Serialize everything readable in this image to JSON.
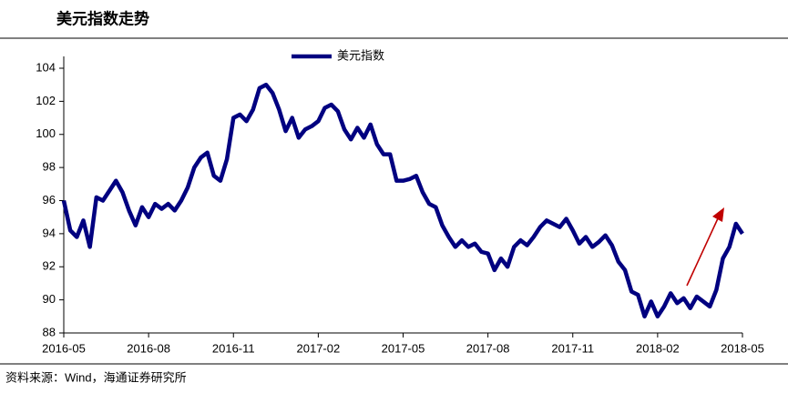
{
  "chart_data": {
    "type": "line",
    "title": "美元指数走势",
    "source": "资料来源：Wind，海通证券研究所",
    "categories": [
      "2016-05",
      null,
      null,
      null,
      null,
      null,
      null,
      null,
      null,
      null,
      null,
      null,
      null,
      "2016-08",
      null,
      null,
      null,
      null,
      null,
      null,
      null,
      null,
      null,
      null,
      null,
      null,
      "2016-11",
      null,
      null,
      null,
      null,
      null,
      null,
      null,
      null,
      null,
      null,
      null,
      null,
      "2017-02",
      null,
      null,
      null,
      null,
      null,
      null,
      null,
      null,
      null,
      null,
      null,
      null,
      "2017-05",
      null,
      null,
      null,
      null,
      null,
      null,
      null,
      null,
      null,
      null,
      null,
      null,
      "2017-08",
      null,
      null,
      null,
      null,
      null,
      null,
      null,
      null,
      null,
      null,
      null,
      null,
      "2017-11",
      null,
      null,
      null,
      null,
      null,
      null,
      null,
      null,
      null,
      null,
      null,
      null,
      "2018-02",
      null,
      null,
      null,
      null,
      null,
      null,
      null,
      null,
      null,
      null,
      null,
      null,
      "2018-05"
    ],
    "series": [
      {
        "name": "美元指数",
        "color": "#000080",
        "values": [
          96.0,
          94.2,
          93.8,
          94.8,
          93.2,
          96.2,
          96.0,
          96.6,
          97.2,
          96.5,
          95.4,
          94.5,
          95.6,
          95.0,
          95.8,
          95.5,
          95.8,
          95.4,
          96.0,
          96.8,
          98.0,
          98.6,
          98.9,
          97.5,
          97.2,
          98.5,
          101.0,
          101.2,
          100.8,
          101.5,
          102.8,
          103.0,
          102.5,
          101.5,
          100.2,
          101.0,
          99.8,
          100.3,
          100.5,
          100.8,
          101.6,
          101.8,
          101.4,
          100.3,
          99.7,
          100.4,
          99.8,
          100.6,
          99.4,
          98.8,
          98.8,
          97.2,
          97.2,
          97.3,
          97.5,
          96.5,
          95.8,
          95.6,
          94.5,
          93.8,
          93.2,
          93.6,
          93.2,
          93.4,
          92.9,
          92.8,
          91.8,
          92.5,
          92.0,
          93.2,
          93.6,
          93.3,
          93.8,
          94.4,
          94.8,
          94.6,
          94.4,
          94.9,
          94.2,
          93.4,
          93.8,
          93.2,
          93.5,
          93.9,
          93.3,
          92.3,
          91.8,
          90.5,
          90.3,
          89.0,
          89.9,
          89.0,
          89.6,
          90.4,
          89.8,
          90.1,
          89.5,
          90.2,
          89.9,
          89.6,
          90.6,
          92.5,
          93.2,
          94.6,
          94.0
        ]
      }
    ],
    "ylim": [
      88,
      104
    ],
    "yticks": [
      88,
      90,
      92,
      94,
      96,
      98,
      100,
      102,
      104
    ],
    "grid": false,
    "legend": "top"
  }
}
